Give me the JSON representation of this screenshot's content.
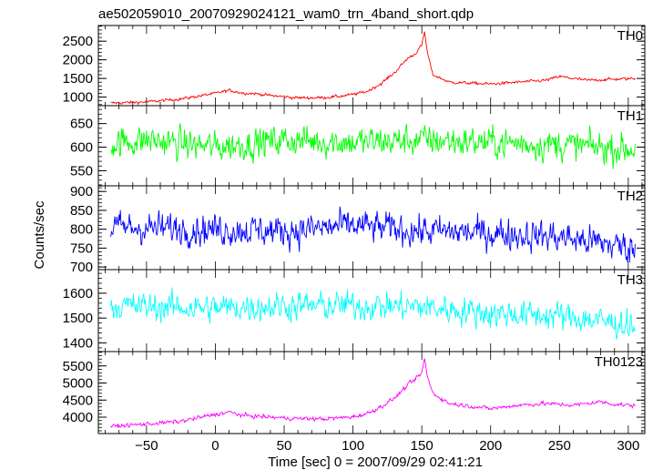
{
  "figure": {
    "title": "ae502059010_20070929024121_wam0_trn_4band_short.qdp",
    "ylabel": "Counts/sec",
    "xlabel": "Time [sec] 0 = 2007/09/29 02:41:21"
  },
  "chart_data": [
    {
      "type": "line",
      "name": "TH0",
      "color": "#ff0000",
      "xlim": [
        -85,
        312
      ],
      "ylim": [
        770,
        2920
      ],
      "yticks_labeled": [
        1000,
        1500,
        2000,
        2500
      ],
      "tick_labels": [
        "1000",
        "1500",
        "2000",
        "2500"
      ],
      "yticks_minor_step": 100,
      "x": [
        -75,
        -50,
        -25,
        0,
        10,
        20,
        30,
        40,
        50,
        60,
        70,
        80,
        90,
        100,
        110,
        120,
        130,
        140,
        145,
        150,
        152,
        154,
        158,
        170,
        200,
        220,
        240,
        250,
        270,
        290,
        305
      ],
      "y": [
        840,
        870,
        950,
        1100,
        1180,
        1110,
        1090,
        1040,
        1010,
        980,
        980,
        990,
        1020,
        1070,
        1150,
        1350,
        1650,
        2050,
        2150,
        2400,
        2750,
        2200,
        1600,
        1400,
        1350,
        1400,
        1450,
        1550,
        1450,
        1480,
        1500
      ],
      "noise": 40
    },
    {
      "type": "line",
      "name": "TH1",
      "color": "#00ff00",
      "xlim": [
        -85,
        312
      ],
      "ylim": [
        518,
        688
      ],
      "yticks_labeled": [
        550,
        600,
        650
      ],
      "tick_labels": [
        "550",
        "600",
        "650"
      ],
      "yticks_minor_step": 10,
      "x": [
        -75,
        -50,
        0,
        50,
        100,
        150,
        200,
        250,
        305
      ],
      "y": [
        608,
        615,
        600,
        615,
        610,
        615,
        610,
        605,
        595
      ],
      "noise": 33
    },
    {
      "type": "line",
      "name": "TH2",
      "color": "#0000ff",
      "xlim": [
        -85,
        312
      ],
      "ylim": [
        693,
        915
      ],
      "yticks_labeled": [
        700,
        750,
        800,
        850,
        900
      ],
      "tick_labels": [
        "700",
        "750",
        "800",
        "850",
        "900"
      ],
      "yticks_minor_step": 10,
      "x": [
        -75,
        0,
        50,
        100,
        150,
        200,
        250,
        305
      ],
      "y": [
        805,
        800,
        795,
        810,
        795,
        790,
        780,
        750
      ],
      "noise": 42
    },
    {
      "type": "line",
      "name": "TH3",
      "color": "#00ffff",
      "xlim": [
        -85,
        312
      ],
      "ylim": [
        1365,
        1695
      ],
      "yticks_labeled": [
        1400,
        1500,
        1600
      ],
      "tick_labels": [
        "1400",
        "1500",
        "1600"
      ],
      "yticks_minor_step": 20,
      "x": [
        -75,
        0,
        50,
        100,
        150,
        200,
        250,
        305
      ],
      "y": [
        1550,
        1540,
        1550,
        1550,
        1545,
        1520,
        1510,
        1470
      ],
      "noise": 58
    },
    {
      "type": "line",
      "name": "TH0123",
      "color": "#ff00ff",
      "xlim": [
        -85,
        312
      ],
      "ylim": [
        3520,
        5920
      ],
      "yticks_labeled": [
        4000,
        4500,
        5000,
        5500
      ],
      "tick_labels": [
        "4000",
        "4500",
        "5000",
        "5500"
      ],
      "yticks_minor_step": 100,
      "x": [
        -75,
        -50,
        -25,
        0,
        10,
        20,
        40,
        60,
        80,
        100,
        110,
        120,
        130,
        140,
        145,
        150,
        152,
        154,
        158,
        170,
        200,
        220,
        240,
        260,
        280,
        290,
        305
      ],
      "y": [
        3730,
        3800,
        3880,
        4080,
        4150,
        4050,
        4000,
        3960,
        3950,
        4010,
        4100,
        4300,
        4550,
        4950,
        5100,
        5300,
        5700,
        5200,
        4700,
        4400,
        4250,
        4350,
        4400,
        4350,
        4450,
        4380,
        4330
      ],
      "noise": 60
    }
  ],
  "xaxis": {
    "ticks_labeled": [
      -50,
      0,
      50,
      100,
      150,
      200,
      250,
      300
    ],
    "tick_labels": [
      "−50",
      "0",
      "50",
      "100",
      "150",
      "200",
      "250",
      "300"
    ],
    "minor_step": 10
  }
}
